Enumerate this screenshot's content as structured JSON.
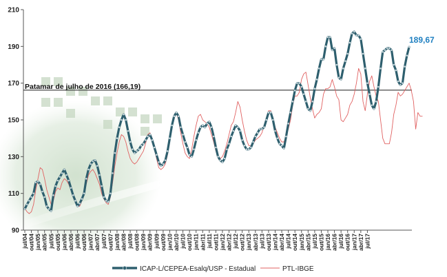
{
  "chart_data": {
    "type": "line",
    "y_ticks": [
      90,
      110,
      130,
      150,
      170,
      190,
      210
    ],
    "ylim": [
      90,
      210
    ],
    "x_tick_labels": [
      "jul/04",
      "out/04",
      "jan/05",
      "abr/05",
      "jul/05",
      "out/05",
      "jan/06",
      "abr/06",
      "jul/06",
      "out/06",
      "jan/07",
      "abr/07",
      "jul/07",
      "out/07",
      "jan/08",
      "abr/08",
      "jul/08",
      "out/08",
      "jan/09",
      "abr/09",
      "jul/09",
      "out/09",
      "jan/10",
      "abr/10",
      "jul/10",
      "out/10",
      "jan/11",
      "abr/11",
      "jul/11",
      "out/11",
      "jan/12",
      "abr/12",
      "jul/12",
      "out/12",
      "jan/13",
      "abr/13",
      "jul/13",
      "out/13",
      "jan/14",
      "abr/14",
      "jul/14",
      "out/14",
      "jan/15",
      "abr/15",
      "jul/15",
      "out/15",
      "jan/16",
      "abr/16",
      "jul/16",
      "out/16",
      "jan/17",
      "abr/17",
      "jul/17"
    ],
    "reference_line": {
      "label": "Patamar de julho de 2016 (166,19)",
      "value": 166.19
    },
    "last_value_label": "189,67",
    "grid": false,
    "legend_position": "bottom",
    "series": [
      {
        "name": "ICAP-L/CEPEA-Esalq/USP - Estadual",
        "color": "#2e5f6e",
        "values": [
          101.5,
          104,
          106,
          108,
          110,
          116,
          116.5,
          115,
          111,
          108,
          103,
          101.5,
          100.5,
          109,
          114,
          117,
          119,
          121,
          123,
          120,
          117,
          113,
          109,
          106,
          103,
          104.5,
          107,
          110,
          118,
          123,
          126,
          127.5,
          128,
          125,
          120,
          114,
          108,
          106,
          105.5,
          110,
          121,
          132,
          140,
          146,
          150,
          153,
          150,
          144,
          138,
          134,
          132,
          133,
          134,
          136,
          137,
          139,
          141,
          142,
          139,
          135,
          131,
          127,
          125,
          126,
          128,
          133,
          140,
          147,
          152,
          154,
          152,
          146,
          142,
          138,
          135,
          131,
          130,
          134,
          139,
          143,
          146,
          147,
          146,
          148,
          149,
          146,
          141,
          135,
          130,
          128,
          127,
          129,
          134,
          137,
          141,
          144,
          147,
          146,
          144,
          139,
          136,
          134,
          134,
          135,
          138,
          141,
          143,
          145,
          145,
          146,
          150,
          154,
          154,
          150,
          144,
          140,
          137,
          136,
          134.5,
          141,
          148,
          154,
          160,
          166,
          170,
          170,
          168,
          164,
          160,
          156,
          155,
          160,
          167,
          172,
          178,
          183,
          183,
          190,
          195,
          195,
          188,
          189,
          180,
          173,
          172,
          178,
          182,
          186,
          192,
          197,
          198,
          196,
          196,
          194,
          186,
          178,
          170,
          164,
          158,
          156,
          160,
          168,
          178,
          187,
          188,
          189,
          189,
          188,
          180,
          177,
          171,
          169,
          170,
          179,
          185,
          189.67
        ]
      },
      {
        "name": "PTL-IBGE",
        "color": "#e06060",
        "values": [
          102,
          100,
          99,
          100,
          104,
          112,
          118,
          124,
          123,
          118,
          112,
          108,
          104,
          106,
          111,
          113,
          112,
          116,
          118,
          117,
          115,
          112,
          108,
          105,
          103,
          103,
          106,
          109,
          115,
          120,
          122,
          123,
          121,
          118,
          115,
          110,
          107,
          105,
          104,
          108,
          116,
          125,
          132,
          138,
          142,
          141,
          138,
          133,
          129,
          127,
          126,
          127,
          129,
          131,
          133,
          137,
          142,
          143,
          140,
          134,
          129,
          124,
          123,
          124,
          126,
          131,
          138,
          146,
          152,
          154,
          150,
          143,
          137,
          132,
          130,
          129,
          134,
          141,
          147,
          152,
          153,
          150,
          149,
          148,
          146,
          142,
          138,
          133,
          130,
          129,
          130,
          133,
          137,
          142,
          147,
          149,
          154,
          160,
          157,
          150,
          144,
          139,
          136,
          136,
          137,
          139,
          140,
          141,
          143,
          147,
          151,
          155,
          155,
          151,
          146,
          143,
          140,
          138,
          138,
          141,
          145,
          150,
          158,
          163,
          163,
          165,
          172,
          175,
          176,
          169,
          162,
          156,
          151,
          153,
          154,
          156,
          164,
          167,
          167,
          168,
          172,
          168,
          163,
          161,
          150,
          149,
          151,
          153,
          158,
          160,
          164,
          170,
          178,
          175,
          160,
          155,
          164,
          171,
          174,
          168,
          163,
          160,
          150,
          140,
          137,
          137,
          137,
          143,
          153,
          158,
          165,
          163,
          164,
          166,
          168,
          170,
          166,
          160,
          145,
          154,
          152,
          152,
          null,
          null
        ]
      }
    ]
  }
}
